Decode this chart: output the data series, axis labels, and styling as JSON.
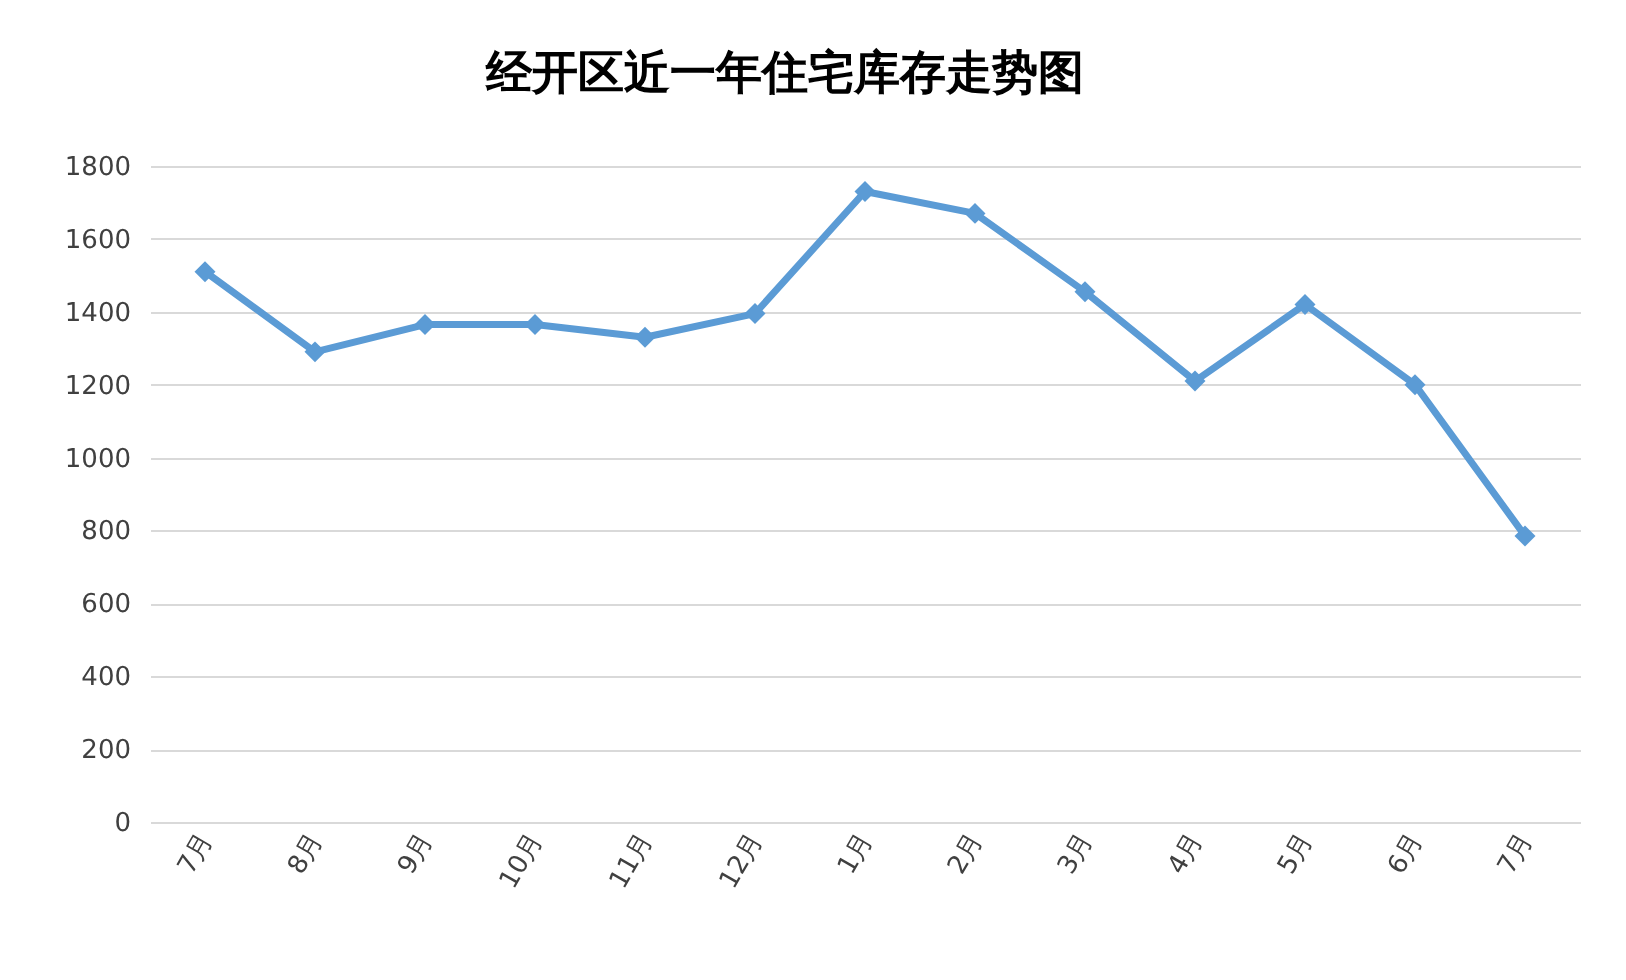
{
  "chart_data": {
    "type": "line",
    "title": "经开区近一年住宅库存走势图",
    "categories": [
      "7月",
      "8月",
      "9月",
      "10月",
      "11月",
      "12月",
      "1月",
      "2月",
      "3月",
      "4月",
      "5月",
      "6月",
      "7月"
    ],
    "series": [
      {
        "color": "#5b9bd5",
        "values": [
          1510,
          1290,
          1365,
          1365,
          1330,
          1395,
          1730,
          1670,
          1455,
          1210,
          1420,
          1200,
          785
        ]
      }
    ],
    "ylim": [
      0,
      1800
    ],
    "yticks": [
      0,
      200,
      400,
      600,
      800,
      1000,
      1200,
      1400,
      1600,
      1800
    ],
    "grid": "y",
    "marker": "diamond",
    "line_style": "solid",
    "legend": false
  }
}
